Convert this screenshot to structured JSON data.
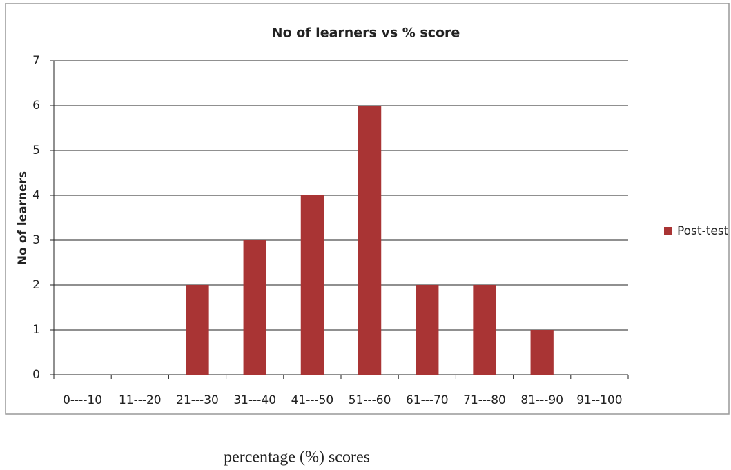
{
  "chart_data": {
    "type": "bar",
    "title": "No of learners vs % score",
    "y_label": "No of learners",
    "x_label": "percentage  (%) scores",
    "categories": [
      "0----10",
      "11---20",
      "21---30",
      "31---40",
      "41---50",
      "51---60",
      "61---70",
      "71---80",
      "81---90",
      "91--100"
    ],
    "series": [
      {
        "name": "Post-test",
        "color": "#a93434",
        "values": [
          0,
          0,
          2,
          3,
          4,
          6,
          2,
          2,
          1,
          0
        ]
      }
    ],
    "ylim": [
      0,
      7
    ],
    "yticks": [
      0,
      1,
      2,
      3,
      4,
      5,
      6,
      7
    ],
    "grid": true,
    "legend": "right"
  }
}
